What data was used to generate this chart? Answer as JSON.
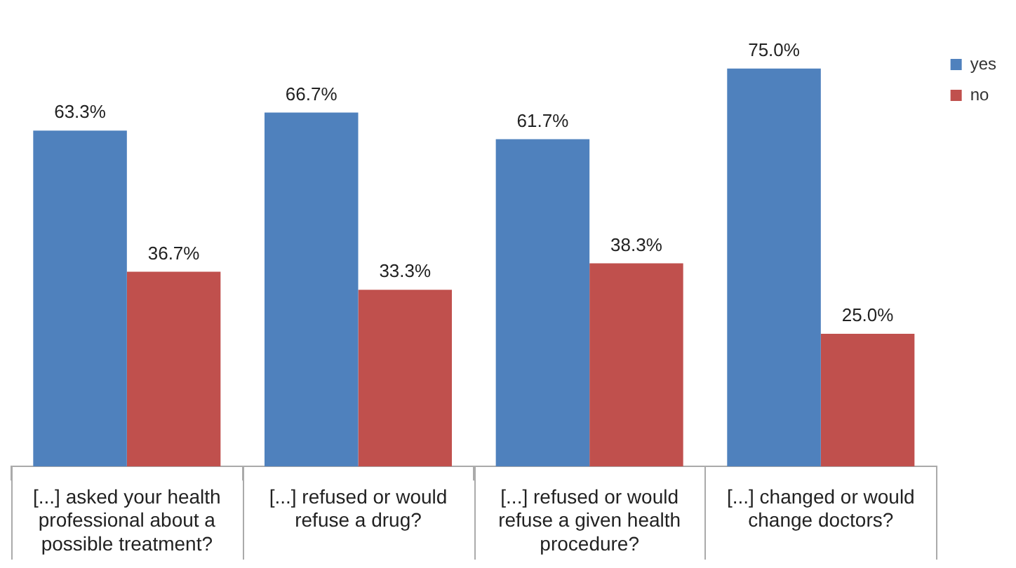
{
  "chart_data": {
    "type": "bar",
    "categories": [
      "[...] asked your health professional about a possible treatment?",
      "[...] refused or would refuse a drug?",
      "[...] refused or would refuse a given health procedure?",
      "[...] changed or would change doctors?"
    ],
    "series": [
      {
        "name": "yes",
        "color": "#4f81bd",
        "values": [
          63.3,
          66.7,
          61.7,
          75.0
        ],
        "value_labels": [
          "63.3%",
          "66.7%",
          "61.7%",
          "75.0%"
        ]
      },
      {
        "name": "no",
        "color": "#c0504d",
        "values": [
          36.7,
          33.3,
          38.3,
          25.0
        ],
        "value_labels": [
          "36.7%",
          "33.3%",
          "38.3%",
          "25.0%"
        ]
      }
    ],
    "legend": "top right"
  }
}
